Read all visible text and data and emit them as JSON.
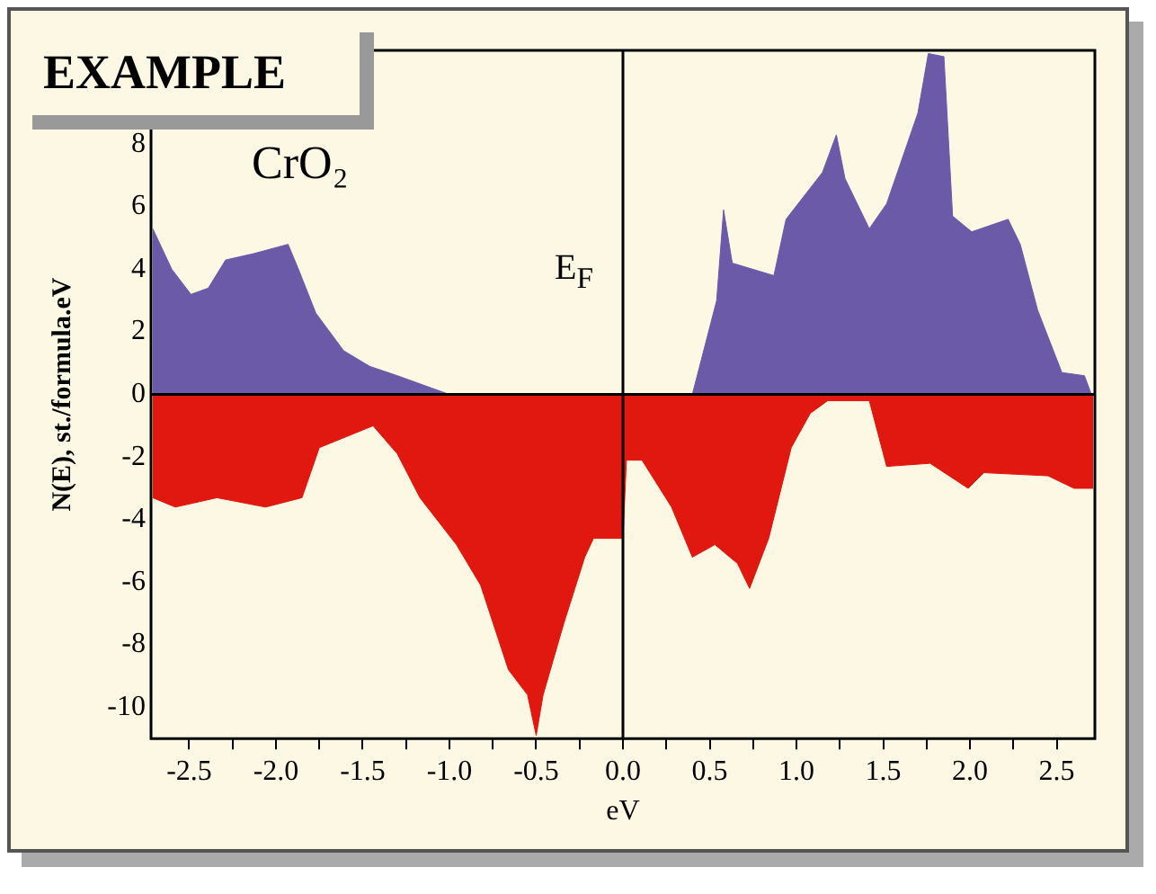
{
  "chart_data": {
    "type": "area",
    "title": "EXAMPLE",
    "xlabel": "eV",
    "ylabel": "N(E), st./formula.eV",
    "annotations": [
      "CrO₂"
    ],
    "xlim": [
      -2.72,
      2.72
    ],
    "ylim": [
      -11,
      11
    ],
    "xticks": [
      {
        "value": -2.5,
        "label": "-2.5"
      },
      {
        "value": -2.25,
        "label": null
      },
      {
        "value": -2,
        "label": "-2.0"
      },
      {
        "value": -1.75,
        "label": null
      },
      {
        "value": -1.5,
        "label": "-1.5"
      },
      {
        "value": -1.25,
        "label": null
      },
      {
        "value": -1,
        "label": "-1.0"
      },
      {
        "value": -0.75,
        "label": null
      },
      {
        "value": -0.5,
        "label": "-0.5"
      },
      {
        "value": -0.25,
        "label": null
      },
      {
        "value": 0,
        "label": "0.0"
      },
      {
        "value": 0.25,
        "label": null
      },
      {
        "value": 0.5,
        "label": "0.5"
      },
      {
        "value": 0.75,
        "label": null
      },
      {
        "value": 1,
        "label": "1.0"
      },
      {
        "value": 1.25,
        "label": null
      },
      {
        "value": 1.5,
        "label": "1.5"
      },
      {
        "value": 1.75,
        "label": null
      },
      {
        "value": 2,
        "label": "2.0"
      },
      {
        "value": 2.25,
        "label": null
      },
      {
        "value": 2.5,
        "label": "2.5"
      }
    ],
    "yticks": [
      -10,
      -8,
      -6,
      -4,
      -2,
      0,
      2,
      4,
      6,
      8
    ],
    "ref_lines": [
      {
        "axis": "x",
        "value": 0,
        "label": "E$_{F}$",
        "color": "#000000"
      }
    ],
    "series": [
      {
        "color": "#6a5aa8",
        "x": [
          -2.71,
          -2.6,
          -2.49,
          -2.39,
          -2.29,
          -2.13,
          -1.93,
          -1.87,
          -1.77,
          -1.61,
          -1.46,
          -1.3,
          -1.1,
          -1.0,
          0.4,
          0.54,
          0.58,
          0.63,
          0.87,
          0.94,
          1.15,
          1.23,
          1.28,
          1.42,
          1.52,
          1.7,
          1.76,
          1.85,
          1.9,
          2.01,
          2.22,
          2.29,
          2.39,
          2.53,
          2.66,
          2.7
        ],
        "values": [
          5.3,
          4.0,
          3.2,
          3.4,
          4.3,
          4.5,
          4.8,
          4.0,
          2.6,
          1.4,
          0.9,
          0.6,
          0.2,
          0,
          0,
          3.0,
          5.9,
          4.2,
          3.8,
          5.6,
          7.1,
          8.3,
          6.9,
          5.3,
          6.1,
          9.0,
          10.9,
          10.8,
          5.7,
          5.2,
          5.6,
          4.8,
          2.7,
          0.7,
          0.6,
          0
        ]
      },
      {
        "color": "#e0180f",
        "x": [
          -2.71,
          -2.58,
          -2.34,
          -2.06,
          -1.85,
          -1.75,
          -1.44,
          -1.3,
          -1.17,
          -0.96,
          -0.82,
          -0.66,
          -0.55,
          -0.5,
          -0.46,
          -0.34,
          -0.22,
          -0.17,
          0,
          0.02,
          0.11,
          0.28,
          0.4,
          0.53,
          0.66,
          0.73,
          0.84,
          0.97,
          1.08,
          1.18,
          1.42,
          1.52,
          1.77,
          1.99,
          2.08,
          2.45,
          2.6,
          2.71
        ],
        "values": [
          -3.3,
          -3.6,
          -3.3,
          -3.6,
          -3.3,
          -1.7,
          -1.0,
          -1.9,
          -3.3,
          -4.8,
          -6.1,
          -8.8,
          -9.6,
          -10.9,
          -9.6,
          -7.3,
          -5.2,
          -4.6,
          -4.6,
          -2.1,
          -2.1,
          -3.6,
          -5.2,
          -4.8,
          -5.4,
          -6.2,
          -4.6,
          -1.7,
          -0.6,
          -0.2,
          -0.2,
          -2.3,
          -2.2,
          -3.0,
          -2.5,
          -2.6,
          -3.0,
          -3.0
        ]
      }
    ]
  }
}
